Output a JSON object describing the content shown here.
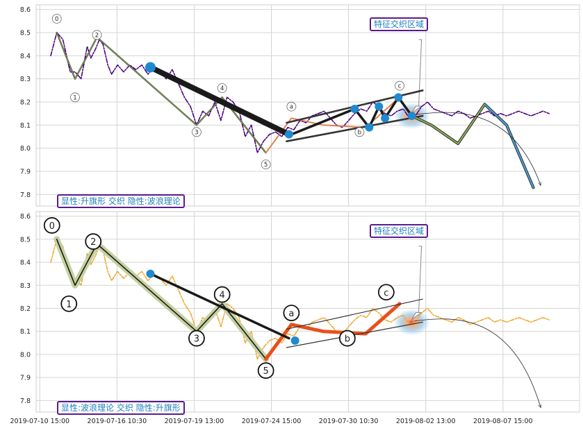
{
  "chart_data": [
    {
      "type": "line",
      "panel": "top",
      "ylim": [
        7.75,
        8.62
      ],
      "yticks": [
        "7.8",
        "7.9",
        "8.0",
        "8.1",
        "8.2",
        "8.3",
        "8.4",
        "8.5",
        "8.6"
      ],
      "xticks": [],
      "caption": "显性:升旗形 交织 隐性:波浪理论",
      "zone_label": "特征交织区域",
      "grid": true,
      "series": [
        {
          "style": "price-dashdot",
          "color": "#4b0082",
          "x": [
            0,
            0.5,
            1,
            1.6,
            2,
            2.5,
            3,
            3.3,
            3.7,
            4,
            4.3,
            4.7,
            5,
            5.5,
            6,
            6.5,
            7,
            7.5,
            8,
            8.5,
            9,
            9.5,
            10,
            10.5,
            11,
            11.5,
            12,
            12.5,
            13,
            13.5,
            14,
            14.5,
            15,
            15.5,
            16,
            16.5,
            17,
            17.5,
            18,
            18.5,
            19,
            19.5,
            20,
            20.5,
            21,
            21.5,
            22,
            22.5,
            23,
            23.5,
            24,
            24.5,
            25,
            25.5,
            26,
            26.5,
            27,
            27.5,
            28,
            28.5,
            29,
            29.5,
            30,
            30.5,
            31,
            31.5,
            32,
            32.5,
            33,
            33.5,
            34,
            34.5,
            35,
            35.5,
            36,
            36.5,
            37,
            37.5,
            38,
            38.5,
            39,
            39.5,
            40,
            40.5,
            41
          ],
          "y": [
            8.4,
            8.5,
            8.47,
            8.33,
            8.33,
            8.3,
            8.44,
            8.39,
            8.43,
            8.47,
            8.45,
            8.36,
            8.32,
            8.36,
            8.33,
            8.36,
            8.34,
            8.36,
            8.32,
            8.35,
            8.33,
            8.3,
            8.34,
            8.28,
            8.22,
            8.18,
            8.1,
            8.16,
            8.14,
            8.2,
            8.12,
            8.22,
            8.2,
            8.16,
            8.05,
            8.1,
            7.98,
            8.03,
            8.06,
            8.07,
            8.05,
            8.09,
            8.08,
            8.12,
            8.11,
            8.14,
            8.15,
            8.16,
            8.13,
            8.1,
            8.09,
            8.12,
            8.15,
            8.17,
            8.16,
            8.2,
            8.18,
            8.15,
            8.14,
            8.16,
            8.17,
            8.13,
            8.14,
            8.18,
            8.2,
            8.17,
            8.16,
            8.15,
            8.14,
            8.16,
            8.15,
            8.13,
            8.14,
            8.15,
            8.16,
            8.14,
            8.15,
            8.14,
            8.15,
            8.16,
            8.15,
            8.14,
            8.15,
            8.16,
            8.15
          ]
        },
        {
          "style": "wave-thin",
          "color": "#8fae5a",
          "x": [
            0.5,
            2,
            3.8,
            12,
            14.1,
            17.7
          ],
          "y": [
            8.5,
            8.3,
            8.48,
            8.1,
            8.22,
            7.98
          ]
        },
        {
          "style": "abc-thin",
          "color": "#e08050",
          "x": [
            17.7,
            19.8,
            22.4,
            25.9,
            28.7
          ],
          "y": [
            7.98,
            8.13,
            8.1,
            8.09,
            8.22
          ]
        },
        {
          "style": "trend-thick",
          "color": "#1a1a1a",
          "x": [
            8.2,
            19.6
          ],
          "y": [
            8.35,
            8.06
          ]
        },
        {
          "style": "channel",
          "color": "#333333",
          "x": [
            19.4,
            30.6
          ],
          "y": [
            8.11,
            8.25
          ]
        },
        {
          "style": "channel",
          "color": "#333333",
          "x": [
            19.4,
            30.6
          ],
          "y": [
            8.03,
            8.14
          ]
        },
        {
          "style": "flag-zigzag",
          "color": "#1a1a1a",
          "x": [
            19.8,
            25,
            26.2,
            27,
            27.5,
            28.6,
            29.7
          ],
          "y": [
            8.06,
            8.17,
            8.09,
            8.18,
            8.13,
            8.22,
            8.14
          ]
        },
        {
          "style": "projection",
          "color": "#8fae5a",
          "x": [
            29.7,
            31.3,
            33.5,
            35.7,
            37.5,
            39.7
          ],
          "y": [
            8.14,
            8.1,
            8.02,
            8.19,
            8.1,
            7.83
          ]
        }
      ],
      "markers": [
        {
          "x": 8.2,
          "y": 8.35
        },
        {
          "x": 19.6,
          "y": 8.06
        },
        {
          "x": 25,
          "y": 8.17
        },
        {
          "x": 26.2,
          "y": 8.09
        },
        {
          "x": 27,
          "y": 8.18
        },
        {
          "x": 27.5,
          "y": 8.13
        },
        {
          "x": 28.6,
          "y": 8.22
        },
        {
          "x": 29.7,
          "y": 8.14
        }
      ],
      "wave_labels": [
        {
          "text": "0",
          "x": 0.5,
          "y": 8.56
        },
        {
          "text": "1",
          "x": 2,
          "y": 8.22
        },
        {
          "text": "2",
          "x": 3.8,
          "y": 8.49
        },
        {
          "text": "3",
          "x": 12,
          "y": 8.07
        },
        {
          "text": "4",
          "x": 14.1,
          "y": 8.26
        },
        {
          "text": "5",
          "x": 17.7,
          "y": 7.93
        },
        {
          "text": "a",
          "x": 19.8,
          "y": 8.18
        },
        {
          "text": "b",
          "x": 25.4,
          "y": 8.07
        },
        {
          "text": "c",
          "x": 28.7,
          "y": 8.27
        }
      ]
    },
    {
      "type": "line",
      "panel": "bottom",
      "ylim": [
        7.75,
        8.62
      ],
      "yticks": [
        "7.8",
        "7.9",
        "8.0",
        "8.1",
        "8.2",
        "8.3",
        "8.4",
        "8.5",
        "8.6"
      ],
      "xticks": [
        "2019-07-10 15:00",
        "2019-07-16 10:30",
        "2019-07-19 13:00",
        "2019-07-24 15:00",
        "2019-07-30 10:30",
        "2019-08-02 13:00",
        "2019-08-07 15:00"
      ],
      "caption": "显性:波浪理论 交织 隐性:升旗形",
      "zone_label": "特征交织区域",
      "grid": true,
      "series": [
        {
          "style": "price-dashdot",
          "color": "#f0a830",
          "x": [
            0,
            0.5,
            1,
            1.6,
            2,
            2.5,
            3,
            3.3,
            3.7,
            4,
            4.3,
            4.7,
            5,
            5.5,
            6,
            6.5,
            7,
            7.5,
            8,
            8.5,
            9,
            9.5,
            10,
            10.5,
            11,
            11.5,
            12,
            12.5,
            13,
            13.5,
            14,
            14.5,
            15,
            15.5,
            16,
            16.5,
            17,
            17.5,
            18,
            18.5,
            19,
            19.5,
            20,
            20.5,
            21,
            21.5,
            22,
            22.5,
            23,
            23.5,
            24,
            24.5,
            25,
            25.5,
            26,
            26.5,
            27,
            27.5,
            28,
            28.5,
            29,
            29.5,
            30,
            30.5,
            31,
            31.5,
            32,
            32.5,
            33,
            33.5,
            34,
            34.5,
            35,
            35.5,
            36,
            36.5,
            37,
            37.5,
            38,
            38.5,
            39,
            39.5,
            40,
            40.5,
            41
          ],
          "y": [
            8.4,
            8.5,
            8.47,
            8.33,
            8.33,
            8.3,
            8.44,
            8.39,
            8.43,
            8.47,
            8.45,
            8.36,
            8.32,
            8.36,
            8.33,
            8.36,
            8.34,
            8.36,
            8.32,
            8.35,
            8.33,
            8.3,
            8.34,
            8.28,
            8.22,
            8.18,
            8.1,
            8.16,
            8.14,
            8.2,
            8.12,
            8.22,
            8.2,
            8.16,
            8.05,
            8.1,
            7.98,
            8.03,
            8.06,
            8.07,
            8.05,
            8.09,
            8.08,
            8.12,
            8.11,
            8.14,
            8.15,
            8.16,
            8.13,
            8.1,
            8.09,
            8.12,
            8.15,
            8.17,
            8.16,
            8.2,
            8.18,
            8.15,
            8.14,
            8.16,
            8.17,
            8.13,
            8.14,
            8.18,
            8.2,
            8.17,
            8.16,
            8.15,
            8.14,
            8.16,
            8.15,
            8.13,
            8.14,
            8.15,
            8.16,
            8.14,
            8.15,
            8.14,
            8.15,
            8.16,
            8.15,
            8.14,
            8.15,
            8.16,
            8.15
          ]
        },
        {
          "style": "wave-thick",
          "color": "#c5d0a0",
          "x": [
            0.5,
            2,
            3.8,
            12,
            14.1,
            17.7
          ],
          "y": [
            8.5,
            8.3,
            8.48,
            8.1,
            8.22,
            7.98
          ]
        },
        {
          "style": "abc-thick",
          "color": "#e8501a",
          "x": [
            17.7,
            19.8,
            22.4,
            25.9,
            28.7
          ],
          "y": [
            7.98,
            8.13,
            8.1,
            8.09,
            8.22
          ]
        },
        {
          "style": "trend",
          "color": "#1a1a1a",
          "x": [
            8.2,
            19.6
          ],
          "y": [
            8.35,
            8.07
          ]
        },
        {
          "style": "channel-thin",
          "color": "#333333",
          "x": [
            19.4,
            30.6
          ],
          "y": [
            8.11,
            8.24
          ]
        },
        {
          "style": "channel-thin",
          "color": "#333333",
          "x": [
            19.4,
            30.6
          ],
          "y": [
            8.03,
            8.14
          ]
        }
      ],
      "markers": [
        {
          "x": 8.2,
          "y": 8.35
        },
        {
          "x": 20.1,
          "y": 8.06
        }
      ],
      "wave_labels": [
        {
          "text": "0",
          "x": 0.1,
          "y": 8.56
        },
        {
          "text": "1",
          "x": 1.5,
          "y": 8.22
        },
        {
          "text": "2",
          "x": 3.5,
          "y": 8.49
        },
        {
          "text": "3",
          "x": 12,
          "y": 8.07
        },
        {
          "text": "4",
          "x": 14.1,
          "y": 8.26
        },
        {
          "text": "5",
          "x": 17.7,
          "y": 7.93
        },
        {
          "text": "a",
          "x": 19.8,
          "y": 8.18
        },
        {
          "text": "b",
          "x": 24.4,
          "y": 8.07
        },
        {
          "text": "c",
          "x": 27.6,
          "y": 8.27
        }
      ]
    }
  ]
}
